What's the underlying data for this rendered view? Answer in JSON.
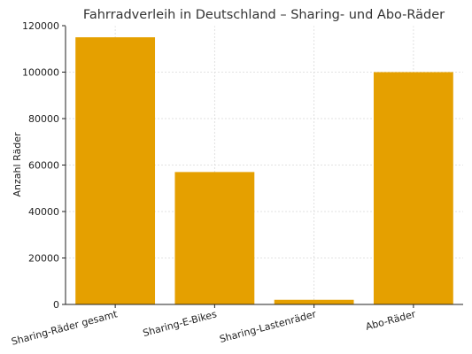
{
  "chart_data": {
    "type": "bar",
    "title": "Fahrradverleih in Deutschland – Sharing- und Abo-Räder",
    "xlabel": "",
    "ylabel": "Anzahl Räder",
    "categories": [
      "Sharing-Räder gesamt",
      "Sharing-E-Bikes",
      "Sharing-Lastenräder",
      "Abo-Räder"
    ],
    "values": [
      115000,
      57000,
      2000,
      100000
    ],
    "ylim": [
      0,
      120000
    ],
    "yticks": [
      0,
      20000,
      40000,
      60000,
      80000,
      100000,
      120000
    ],
    "grid": true,
    "bar_color": "#E5A000"
  }
}
